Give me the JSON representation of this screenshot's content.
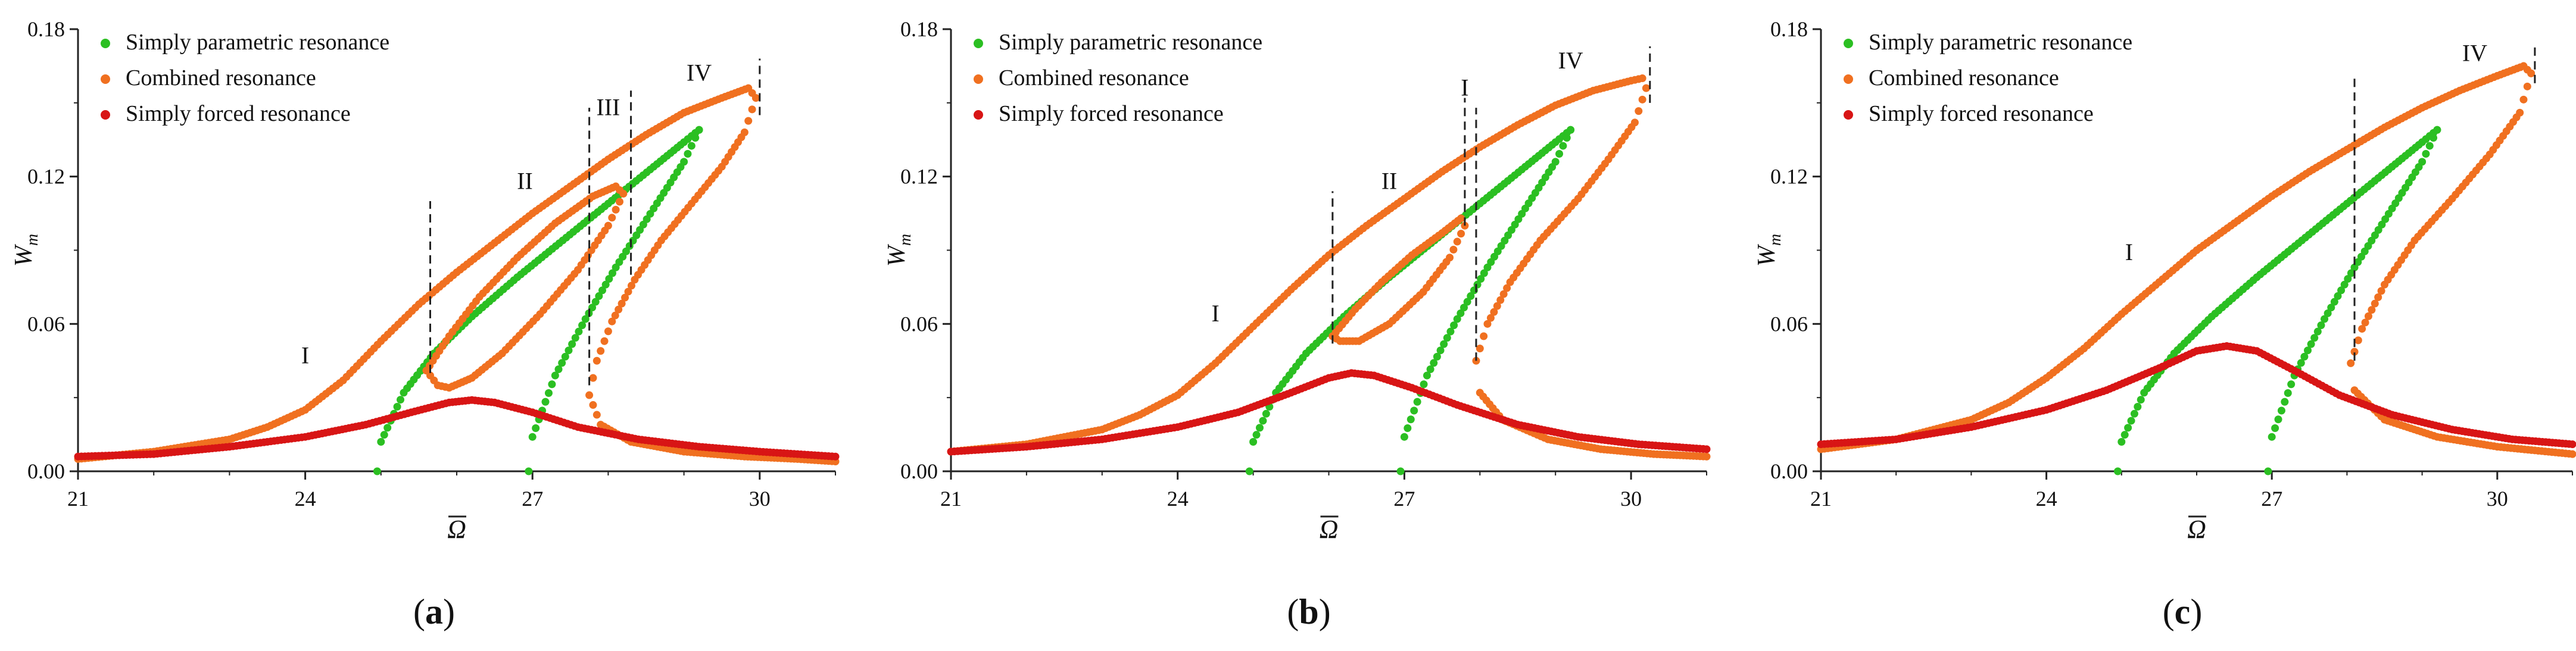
{
  "colors": {
    "simply_parametric": "#2bbf22",
    "combined": "#f07020",
    "simply_forced": "#d81515",
    "axis": "#222222",
    "marker_line": "#222222"
  },
  "legend": {
    "placement": "top-left",
    "items": [
      {
        "key": "param",
        "label": "Simply parametric resonance",
        "color": "#2bbf22"
      },
      {
        "key": "combined",
        "label": "Combined resonance",
        "color": "#f07020"
      },
      {
        "key": "forced",
        "label": "Simply forced resonance",
        "color": "#d81515"
      }
    ]
  },
  "axes": {
    "xlabel": "Ω",
    "ylabel_main": "W",
    "ylabel_sub": "m",
    "xlim": [
      21,
      31
    ],
    "ylim": [
      0,
      0.18
    ],
    "xticks": [
      21,
      24,
      27,
      30
    ],
    "xtick_labels": [
      "21",
      "24",
      "27",
      "30"
    ],
    "yticks": [
      0,
      0.06,
      0.12,
      0.18
    ],
    "ytick_labels": [
      "0.00",
      "0.06",
      "0.12",
      "0.18"
    ]
  },
  "panels": [
    {
      "id": "a",
      "caption_open": "(",
      "caption_letter": "a",
      "caption_close": ")"
    },
    {
      "id": "b",
      "caption_open": "(",
      "caption_letter": "b",
      "caption_close": ")"
    },
    {
      "id": "c",
      "caption_open": "(",
      "caption_letter": "c",
      "caption_close": ")"
    }
  ],
  "chart_data": [
    {
      "type": "line",
      "panel": "a",
      "xlim": [
        21,
        31
      ],
      "ylim": [
        0,
        0.18
      ],
      "xlabel": "Ω",
      "ylabel": "W_m",
      "legend": "top-left",
      "grid": false,
      "series": [
        {
          "name": "Simply parametric resonance",
          "segments": [
            {
              "x": [
                24.95,
                25.0,
                25.3,
                25.7,
                26.2,
                26.8,
                27.4,
                28.0,
                28.6,
                29.0,
                29.2
              ],
              "y": [
                0.0,
                0.012,
                0.032,
                0.048,
                0.063,
                0.079,
                0.094,
                0.109,
                0.124,
                0.134,
                0.139
              ]
            },
            {
              "x": [
                26.95,
                27.0,
                27.3,
                27.7,
                28.1,
                28.6,
                29.0,
                29.2
              ],
              "y": [
                0.0,
                0.014,
                0.039,
                0.062,
                0.083,
                0.107,
                0.126,
                0.139
              ]
            }
          ]
        },
        {
          "name": "Combined resonance",
          "segments": [
            {
              "x": [
                21.0,
                22.0,
                23.0,
                23.5,
                24.0,
                24.5,
                25.0,
                25.5,
                26.0,
                26.5,
                27.0,
                27.5,
                28.0,
                28.5,
                29.0,
                29.5,
                29.85,
                29.95
              ],
              "y": [
                0.005,
                0.008,
                0.013,
                0.018,
                0.025,
                0.037,
                0.053,
                0.068,
                0.081,
                0.093,
                0.105,
                0.116,
                0.127,
                0.137,
                0.146,
                0.152,
                0.156,
                0.152
              ]
            },
            {
              "x": [
                29.95,
                29.8,
                29.5,
                29.1,
                28.7,
                28.35,
                28.05,
                27.85,
                27.75,
                27.9,
                28.3,
                29.0,
                29.8,
                30.5,
                31.0
              ],
              "y": [
                0.152,
                0.138,
                0.124,
                0.109,
                0.094,
                0.078,
                0.061,
                0.045,
                0.031,
                0.019,
                0.012,
                0.008,
                0.006,
                0.005,
                0.004
              ]
            },
            {
              "x": [
                25.6,
                25.9,
                26.3,
                26.8,
                27.3,
                27.8,
                28.1,
                28.2,
                28.0,
                27.6,
                27.1,
                26.6,
                26.2,
                25.9,
                25.75,
                25.6
              ],
              "y": [
                0.041,
                0.055,
                0.071,
                0.087,
                0.101,
                0.112,
                0.116,
                0.113,
                0.1,
                0.082,
                0.064,
                0.048,
                0.038,
                0.034,
                0.035,
                0.041
              ]
            }
          ]
        },
        {
          "name": "Simply forced resonance",
          "segments": [
            {
              "x": [
                21.0,
                22.0,
                23.0,
                24.0,
                24.8,
                25.4,
                25.9,
                26.2,
                26.5,
                27.0,
                27.6,
                28.4,
                29.2,
                30.0,
                31.0
              ],
              "y": [
                0.006,
                0.007,
                0.01,
                0.014,
                0.019,
                0.024,
                0.028,
                0.029,
                0.028,
                0.024,
                0.018,
                0.013,
                0.01,
                0.008,
                0.006
              ]
            }
          ]
        }
      ],
      "markers": [
        {
          "x": 25.65,
          "y": [
            0.04,
            0.11
          ]
        },
        {
          "x": 27.75,
          "y": [
            0.035,
            0.148
          ]
        },
        {
          "x": 28.3,
          "y": [
            0.08,
            0.155
          ]
        },
        {
          "x": 30.0,
          "y": [
            0.145,
            0.168
          ]
        }
      ],
      "annotations": [
        {
          "text": "I",
          "x": 24.0,
          "y": 0.044
        },
        {
          "text": "II",
          "x": 26.9,
          "y": 0.115
        },
        {
          "text": "III",
          "x": 28.0,
          "y": 0.145
        },
        {
          "text": "IV",
          "x": 29.2,
          "y": 0.159
        }
      ]
    },
    {
      "type": "line",
      "panel": "b",
      "xlim": [
        21,
        31
      ],
      "ylim": [
        0,
        0.18
      ],
      "xlabel": "Ω",
      "ylabel": "W_m",
      "legend": "top-left",
      "grid": false,
      "series": [
        {
          "name": "Simply parametric resonance",
          "segments": [
            {
              "x": [
                24.95,
                25.0,
                25.3,
                25.7,
                26.2,
                26.8,
                27.4,
                28.0,
                28.6,
                29.0,
                29.2
              ],
              "y": [
                0.0,
                0.012,
                0.032,
                0.048,
                0.063,
                0.079,
                0.094,
                0.109,
                0.124,
                0.134,
                0.139
              ]
            },
            {
              "x": [
                26.95,
                27.0,
                27.3,
                27.7,
                28.1,
                28.6,
                29.0,
                29.2
              ],
              "y": [
                0.0,
                0.014,
                0.039,
                0.062,
                0.083,
                0.107,
                0.126,
                0.139
              ]
            }
          ]
        },
        {
          "name": "Combined resonance",
          "segments": [
            {
              "x": [
                21.0,
                22.0,
                23.0,
                23.5,
                24.0,
                24.5,
                25.0,
                25.5,
                26.0,
                26.5,
                27.0,
                27.5,
                28.0,
                28.5,
                29.0,
                29.5,
                30.0,
                30.15,
                30.2
              ],
              "y": [
                0.008,
                0.011,
                0.017,
                0.023,
                0.031,
                0.044,
                0.059,
                0.074,
                0.088,
                0.1,
                0.111,
                0.122,
                0.132,
                0.141,
                0.149,
                0.155,
                0.159,
                0.16,
                0.156
              ]
            },
            {
              "x": [
                30.2,
                30.05,
                29.7,
                29.3,
                28.8,
                28.4,
                28.1,
                27.95,
                28.0,
                28.3,
                28.9,
                29.6,
                30.3,
                31.0
              ],
              "y": [
                0.156,
                0.142,
                0.127,
                0.111,
                0.094,
                0.077,
                0.06,
                0.045,
                0.032,
                0.021,
                0.013,
                0.009,
                0.007,
                0.006
              ]
            },
            {
              "x": [
                26.05,
                26.35,
                26.7,
                27.1,
                27.5,
                27.75,
                27.8,
                27.6,
                27.25,
                26.8,
                26.4,
                26.15,
                26.05
              ],
              "y": [
                0.055,
                0.066,
                0.077,
                0.088,
                0.097,
                0.103,
                0.1,
                0.087,
                0.073,
                0.06,
                0.053,
                0.053,
                0.055
              ]
            }
          ]
        },
        {
          "name": "Simply forced resonance",
          "segments": [
            {
              "x": [
                21.0,
                22.0,
                23.0,
                24.0,
                24.8,
                25.5,
                26.0,
                26.3,
                26.6,
                27.1,
                27.7,
                28.5,
                29.3,
                30.1,
                31.0
              ],
              "y": [
                0.008,
                0.01,
                0.013,
                0.018,
                0.024,
                0.032,
                0.038,
                0.04,
                0.039,
                0.034,
                0.027,
                0.019,
                0.014,
                0.011,
                0.009
              ]
            }
          ]
        }
      ],
      "markers": [
        {
          "x": 26.05,
          "y": [
            0.052,
            0.114
          ]
        },
        {
          "x": 27.8,
          "y": [
            0.1,
            0.152
          ]
        },
        {
          "x": 27.95,
          "y": [
            0.045,
            0.148
          ]
        },
        {
          "x": 30.25,
          "y": [
            0.15,
            0.173
          ]
        }
      ],
      "annotations": [
        {
          "text": "I",
          "x": 24.5,
          "y": 0.061
        },
        {
          "text": "II",
          "x": 26.8,
          "y": 0.115
        },
        {
          "text": "I",
          "x": 27.8,
          "y": 0.153
        },
        {
          "text": "IV",
          "x": 29.2,
          "y": 0.164
        }
      ]
    },
    {
      "type": "line",
      "panel": "c",
      "xlim": [
        21,
        31
      ],
      "ylim": [
        0,
        0.18
      ],
      "xlabel": "Ω",
      "ylabel": "W_m",
      "legend": "top-left",
      "grid": false,
      "series": [
        {
          "name": "Simply parametric resonance",
          "segments": [
            {
              "x": [
                24.95,
                25.0,
                25.3,
                25.7,
                26.2,
                26.8,
                27.4,
                28.0,
                28.6,
                29.0,
                29.2
              ],
              "y": [
                0.0,
                0.012,
                0.032,
                0.048,
                0.063,
                0.079,
                0.094,
                0.109,
                0.124,
                0.134,
                0.139
              ]
            },
            {
              "x": [
                26.95,
                27.0,
                27.3,
                27.7,
                28.1,
                28.6,
                29.0,
                29.2
              ],
              "y": [
                0.0,
                0.014,
                0.039,
                0.062,
                0.083,
                0.107,
                0.126,
                0.139
              ]
            }
          ]
        },
        {
          "name": "Combined resonance",
          "segments": [
            {
              "x": [
                21.0,
                22.0,
                23.0,
                23.5,
                24.0,
                24.5,
                25.0,
                25.5,
                26.0,
                26.5,
                27.0,
                27.5,
                28.0,
                28.5,
                29.0,
                29.5,
                30.0,
                30.35,
                30.45
              ],
              "y": [
                0.009,
                0.013,
                0.021,
                0.028,
                0.038,
                0.05,
                0.064,
                0.077,
                0.09,
                0.101,
                0.112,
                0.122,
                0.131,
                0.14,
                0.148,
                0.155,
                0.161,
                0.165,
                0.162
              ]
            },
            {
              "x": [
                30.45,
                30.3,
                29.9,
                29.4,
                28.9,
                28.5,
                28.2,
                28.05,
                28.1,
                28.5,
                29.2,
                30.0,
                31.0
              ],
              "y": [
                0.162,
                0.146,
                0.129,
                0.111,
                0.094,
                0.076,
                0.058,
                0.044,
                0.033,
                0.021,
                0.014,
                0.01,
                0.007
              ]
            }
          ]
        },
        {
          "name": "Simply forced resonance",
          "segments": [
            {
              "x": [
                21.0,
                22.0,
                23.0,
                24.0,
                24.8,
                25.5,
                26.0,
                26.4,
                26.8,
                27.3,
                27.9,
                28.6,
                29.4,
                30.2,
                31.0
              ],
              "y": [
                0.011,
                0.013,
                0.018,
                0.025,
                0.033,
                0.042,
                0.049,
                0.051,
                0.049,
                0.041,
                0.031,
                0.023,
                0.017,
                0.013,
                0.011
              ]
            }
          ]
        }
      ],
      "markers": [
        {
          "x": 28.1,
          "y": [
            0.045,
            0.162
          ]
        },
        {
          "x": 30.5,
          "y": [
            0.158,
            0.174
          ]
        }
      ],
      "annotations": [
        {
          "text": "I",
          "x": 25.1,
          "y": 0.086
        },
        {
          "text": "IV",
          "x": 29.7,
          "y": 0.167
        }
      ]
    }
  ]
}
